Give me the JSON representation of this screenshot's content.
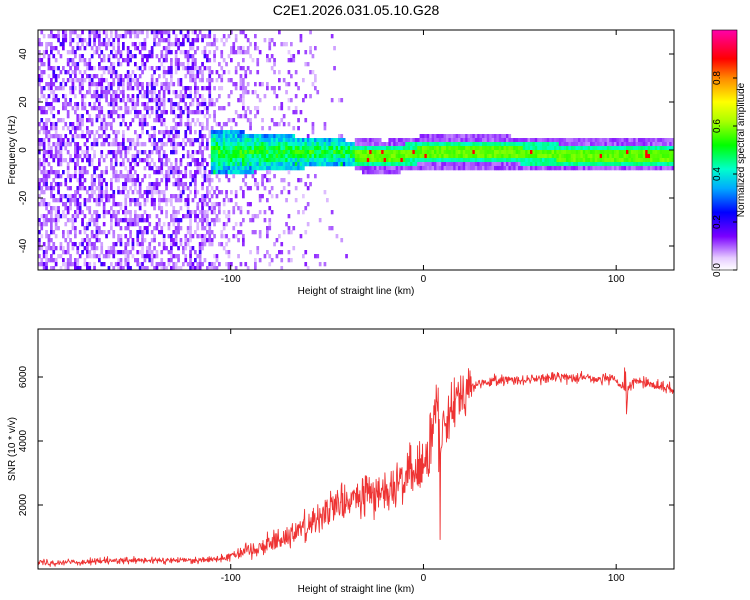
{
  "figure": {
    "title": "C2E1.2026.031.05.10.G28"
  },
  "chart_data": [
    {
      "type": "heatmap",
      "title": "C2E1.2026.031.05.10.G28",
      "xlabel": "Height of straight line (km)",
      "ylabel": "Frequency (Hz)",
      "xlim": [
        -200,
        130
      ],
      "ylim": [
        -50,
        50
      ],
      "x_ticks": [
        -100,
        0,
        100
      ],
      "y_ticks": [
        -40,
        -20,
        0,
        20,
        40
      ],
      "colorbar": {
        "label": "Normalized spectral amplitude",
        "range": [
          0,
          1
        ],
        "ticks": [
          0.0,
          0.2,
          0.4,
          0.6,
          0.8
        ]
      },
      "description_series": {
        "noise_region_km": [
          -200,
          -110
        ],
        "transition_region_km": [
          -110,
          -35
        ],
        "tracking_region_km": [
          -35,
          130
        ],
        "track_frequency_hz": [
          [
            -35,
            -2
          ],
          [
            -20,
            -3
          ],
          [
            -10,
            -2
          ],
          [
            0,
            -1
          ],
          [
            10,
            -1
          ],
          [
            20,
            -1
          ],
          [
            40,
            -1
          ],
          [
            70,
            -2
          ],
          [
            100,
            -2
          ],
          [
            130,
            -2
          ]
        ]
      }
    },
    {
      "type": "line",
      "xlabel": "Height of straight line (km)",
      "ylabel": "SNR (10 * v/v)",
      "xlim": [
        -200,
        130
      ],
      "ylim": [
        0,
        7500
      ],
      "x_ticks": [
        -100,
        0,
        100
      ],
      "y_ticks": [
        2000,
        4000,
        6000
      ],
      "series": [
        {
          "name": "SNR",
          "color": "#ee3333",
          "x": [
            -200,
            -180,
            -160,
            -140,
            -120,
            -105,
            -100,
            -90,
            -80,
            -70,
            -60,
            -50,
            -40,
            -30,
            -20,
            -10,
            -5,
            0,
            3,
            5,
            7,
            8,
            10,
            15,
            20,
            30,
            40,
            50,
            60,
            70,
            80,
            90,
            100,
            105,
            110,
            120,
            130
          ],
          "values": [
            200,
            220,
            250,
            260,
            280,
            320,
            450,
            600,
            800,
            1050,
            1400,
            1800,
            2100,
            2300,
            2500,
            2800,
            3000,
            3200,
            3700,
            4200,
            5500,
            3000,
            4600,
            5200,
            5600,
            5800,
            5900,
            5900,
            5950,
            6000,
            6000,
            5950,
            5900,
            5500,
            5900,
            5750,
            5600
          ]
        }
      ]
    }
  ]
}
